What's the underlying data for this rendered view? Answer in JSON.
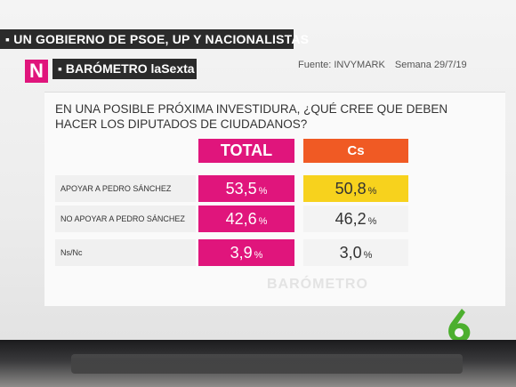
{
  "header": {
    "title": "▪ UN GOBIERNO DE PSOE, UP Y NACIONALISTAS",
    "logo_letter": "N",
    "program": "▪ BARÓMETRO laSexta",
    "source": "Fuente:  INVYMARK",
    "week": "Semana 29/7/19"
  },
  "chart_data": {
    "type": "table",
    "title": "EN UNA POSIBLE PRÓXIMA INVESTIDURA, ¿QUÉ CREE QUE DEBEN HACER LOS DIPUTADOS DE CIUDADANOS?",
    "columns": [
      "TOTAL",
      "Cs"
    ],
    "rows": [
      {
        "label": "APOYAR A PEDRO SÁNCHEZ",
        "total": "53,5",
        "cs": "50,8"
      },
      {
        "label": "NO APOYAR A PEDRO SÁNCHEZ",
        "total": "42,6",
        "cs": "46,2"
      },
      {
        "label": "Ns/Nc",
        "total": "3,9",
        "cs": "3,0"
      }
    ],
    "unit": "%",
    "colors": {
      "total": "#e0157c",
      "cs": "#f05a24",
      "highlight": "#f7d21d"
    }
  },
  "watermark": "BARÓMETRO",
  "channel_logo": "6"
}
